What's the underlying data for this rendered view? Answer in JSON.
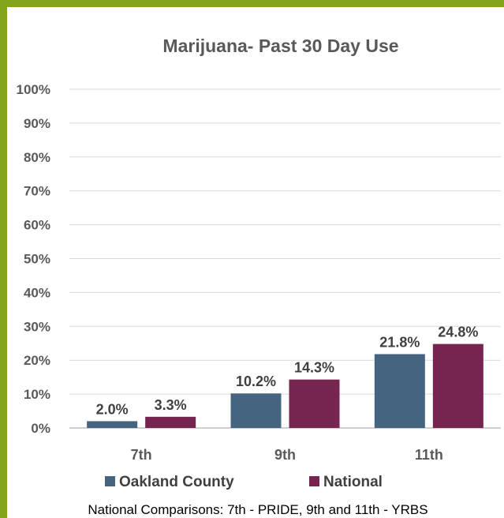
{
  "chart_data": {
    "type": "bar",
    "title": "Marijuana- Past 30 Day Use",
    "xlabel": "",
    "ylabel": "",
    "categories": [
      "7th",
      "9th",
      "11th"
    ],
    "series": [
      {
        "name": "Oakland County",
        "values": [
          2.0,
          10.2,
          21.8
        ],
        "labels": [
          "2.0%",
          "10.2%",
          "21.8%"
        ],
        "color": "#44647f"
      },
      {
        "name": "National",
        "values": [
          3.3,
          14.3,
          24.8
        ],
        "labels": [
          "3.3%",
          "14.3%",
          "24.8%"
        ],
        "color": "#762551"
      }
    ],
    "ylim": [
      0,
      100
    ],
    "yticks": [
      "0%",
      "10%",
      "20%",
      "30%",
      "40%",
      "50%",
      "60%",
      "70%",
      "80%",
      "90%",
      "100%"
    ],
    "grid": true,
    "legend": "bottom"
  },
  "footnote": "National Comparisons: 7th - PRIDE, 9th and 11th - YRBS",
  "colors": {
    "frame": "#84a51b"
  }
}
